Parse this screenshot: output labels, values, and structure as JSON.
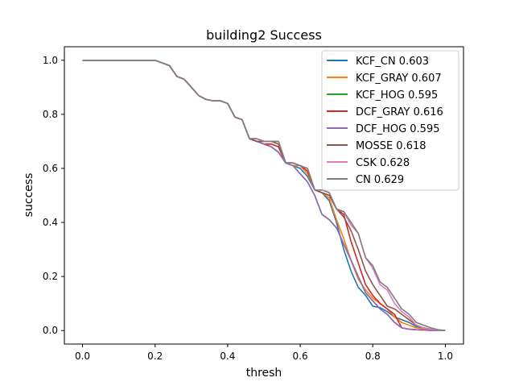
{
  "chart_data": {
    "type": "line",
    "title": "building2 Success",
    "xlabel": "thresh",
    "ylabel": "success",
    "xlim": [
      -0.05,
      1.05
    ],
    "ylim": [
      -0.05,
      1.05
    ],
    "xticks": [
      0.0,
      0.2,
      0.4,
      0.6,
      0.8,
      1.0
    ],
    "yticks": [
      0.0,
      0.2,
      0.4,
      0.6,
      0.8,
      1.0
    ],
    "tick_labels_x": [
      "0.0",
      "0.2",
      "0.4",
      "0.6",
      "0.8",
      "1.0"
    ],
    "tick_labels_y": [
      "0.0",
      "0.2",
      "0.4",
      "0.6",
      "0.8",
      "1.0"
    ],
    "grid": false,
    "legend_position": "upper right",
    "x": [
      0.0,
      0.05,
      0.1,
      0.15,
      0.2,
      0.22,
      0.24,
      0.26,
      0.28,
      0.3,
      0.32,
      0.34,
      0.36,
      0.38,
      0.4,
      0.42,
      0.44,
      0.46,
      0.48,
      0.5,
      0.52,
      0.54,
      0.56,
      0.58,
      0.6,
      0.62,
      0.64,
      0.66,
      0.68,
      0.7,
      0.72,
      0.74,
      0.76,
      0.78,
      0.8,
      0.82,
      0.84,
      0.86,
      0.88,
      0.9,
      0.92,
      0.94,
      0.96,
      0.98,
      1.0
    ],
    "series": [
      {
        "name": "KCF_CN 0.603",
        "color": "#1f77b4",
        "values": [
          1.0,
          1.0,
          1.0,
          1.0,
          1.0,
          0.99,
          0.98,
          0.94,
          0.93,
          0.9,
          0.87,
          0.855,
          0.85,
          0.85,
          0.84,
          0.79,
          0.78,
          0.71,
          0.7,
          0.69,
          0.68,
          0.66,
          0.62,
          0.61,
          0.6,
          0.57,
          0.52,
          0.51,
          0.48,
          0.4,
          0.3,
          0.22,
          0.16,
          0.13,
          0.09,
          0.085,
          0.07,
          0.05,
          0.04,
          0.03,
          0.015,
          0.01,
          0.005,
          0.0,
          0.0
        ]
      },
      {
        "name": "KCF_GRAY 0.607",
        "color": "#ff7f0e",
        "values": [
          1.0,
          1.0,
          1.0,
          1.0,
          1.0,
          0.99,
          0.98,
          0.94,
          0.93,
          0.9,
          0.87,
          0.855,
          0.85,
          0.85,
          0.84,
          0.79,
          0.78,
          0.71,
          0.7,
          0.69,
          0.69,
          0.68,
          0.62,
          0.61,
          0.61,
          0.58,
          0.52,
          0.51,
          0.49,
          0.41,
          0.34,
          0.26,
          0.19,
          0.15,
          0.12,
          0.1,
          0.08,
          0.05,
          0.03,
          0.02,
          0.01,
          0.005,
          0.003,
          0.0,
          0.0
        ]
      },
      {
        "name": "KCF_HOG 0.595",
        "color": "#2ca02c",
        "values": [
          1.0,
          1.0,
          1.0,
          1.0,
          1.0,
          0.99,
          0.98,
          0.94,
          0.93,
          0.9,
          0.87,
          0.855,
          0.85,
          0.85,
          0.84,
          0.79,
          0.78,
          0.71,
          0.7,
          0.69,
          0.68,
          0.66,
          0.62,
          0.61,
          0.58,
          0.55,
          0.5,
          0.43,
          0.41,
          0.38,
          0.32,
          0.26,
          0.2,
          0.14,
          0.11,
          0.08,
          0.06,
          0.03,
          0.01,
          0.005,
          0.003,
          0.002,
          0.001,
          0.0,
          0.0
        ]
      },
      {
        "name": "DCF_GRAY 0.616",
        "color": "#d62728",
        "values": [
          1.0,
          1.0,
          1.0,
          1.0,
          1.0,
          0.99,
          0.98,
          0.94,
          0.93,
          0.9,
          0.87,
          0.855,
          0.85,
          0.85,
          0.84,
          0.79,
          0.78,
          0.71,
          0.7,
          0.69,
          0.69,
          0.68,
          0.62,
          0.62,
          0.61,
          0.59,
          0.52,
          0.51,
          0.5,
          0.45,
          0.43,
          0.33,
          0.25,
          0.17,
          0.13,
          0.1,
          0.08,
          0.06,
          0.01,
          0.005,
          0.003,
          0.002,
          0.001,
          0.0,
          0.0
        ]
      },
      {
        "name": "DCF_HOG 0.595",
        "color": "#9467bd",
        "values": [
          1.0,
          1.0,
          1.0,
          1.0,
          1.0,
          0.99,
          0.98,
          0.94,
          0.93,
          0.9,
          0.87,
          0.855,
          0.85,
          0.85,
          0.84,
          0.79,
          0.78,
          0.71,
          0.7,
          0.69,
          0.68,
          0.66,
          0.62,
          0.61,
          0.58,
          0.55,
          0.5,
          0.43,
          0.41,
          0.38,
          0.32,
          0.26,
          0.2,
          0.14,
          0.11,
          0.08,
          0.06,
          0.03,
          0.01,
          0.005,
          0.003,
          0.002,
          0.001,
          0.0,
          0.0
        ]
      },
      {
        "name": "MOSSE 0.618",
        "color": "#8c564b",
        "values": [
          1.0,
          1.0,
          1.0,
          1.0,
          1.0,
          0.99,
          0.98,
          0.94,
          0.93,
          0.9,
          0.87,
          0.855,
          0.85,
          0.85,
          0.84,
          0.79,
          0.78,
          0.71,
          0.7,
          0.7,
          0.7,
          0.69,
          0.62,
          0.62,
          0.61,
          0.6,
          0.52,
          0.51,
          0.5,
          0.45,
          0.42,
          0.37,
          0.3,
          0.22,
          0.17,
          0.13,
          0.09,
          0.08,
          0.06,
          0.04,
          0.02,
          0.01,
          0.005,
          0.002,
          0.0
        ]
      },
      {
        "name": "CSK 0.628",
        "color": "#e377c2",
        "values": [
          1.0,
          1.0,
          1.0,
          1.0,
          1.0,
          0.99,
          0.98,
          0.94,
          0.93,
          0.9,
          0.87,
          0.855,
          0.85,
          0.85,
          0.84,
          0.79,
          0.78,
          0.71,
          0.71,
          0.7,
          0.7,
          0.7,
          0.62,
          0.62,
          0.61,
          0.6,
          0.52,
          0.52,
          0.51,
          0.45,
          0.44,
          0.39,
          0.36,
          0.27,
          0.23,
          0.17,
          0.15,
          0.1,
          0.07,
          0.05,
          0.02,
          0.01,
          0.005,
          0.002,
          0.0
        ]
      },
      {
        "name": "CN 0.629",
        "color": "#7f7f7f",
        "values": [
          1.0,
          1.0,
          1.0,
          1.0,
          1.0,
          0.99,
          0.98,
          0.94,
          0.93,
          0.9,
          0.87,
          0.855,
          0.85,
          0.85,
          0.84,
          0.79,
          0.78,
          0.71,
          0.71,
          0.7,
          0.7,
          0.7,
          0.62,
          0.62,
          0.61,
          0.6,
          0.52,
          0.52,
          0.51,
          0.45,
          0.44,
          0.4,
          0.36,
          0.27,
          0.24,
          0.18,
          0.16,
          0.12,
          0.08,
          0.06,
          0.03,
          0.02,
          0.01,
          0.003,
          0.0
        ]
      }
    ]
  }
}
